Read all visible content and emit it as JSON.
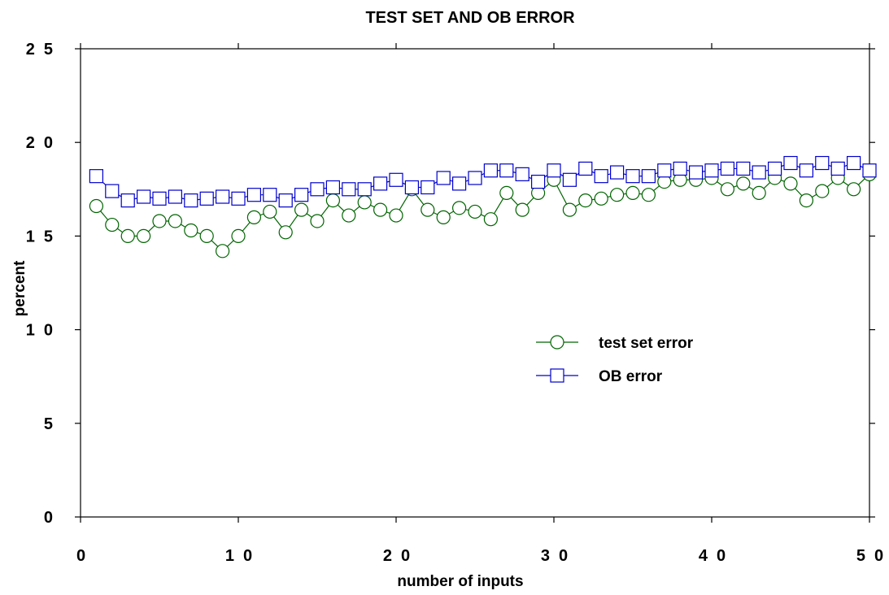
{
  "chart_data": {
    "type": "line",
    "title": "TEST SET AND OB ERROR",
    "xlabel": "number of inputs",
    "ylabel": "percent",
    "xlim": [
      0,
      50
    ],
    "ylim": [
      0,
      25
    ],
    "xticks": [
      0,
      10,
      20,
      30,
      40,
      50
    ],
    "xtick_labels": [
      "0",
      "10",
      "20",
      "30",
      "40",
      "50"
    ],
    "yticks": [
      0,
      5,
      10,
      15,
      20,
      25
    ],
    "ytick_labels": [
      "0",
      "5",
      "10",
      "15",
      "20",
      "25"
    ],
    "grid": false,
    "legend_position": "center-right",
    "x": [
      1,
      2,
      3,
      4,
      5,
      6,
      7,
      8,
      9,
      10,
      11,
      12,
      13,
      14,
      15,
      16,
      17,
      18,
      19,
      20,
      21,
      22,
      23,
      24,
      25,
      26,
      27,
      28,
      29,
      30,
      31,
      32,
      33,
      34,
      35,
      36,
      37,
      38,
      39,
      40,
      41,
      42,
      43,
      44,
      45,
      46,
      47,
      48,
      49,
      50
    ],
    "series": [
      {
        "name": "test set error",
        "color": "#006400",
        "marker": "circle",
        "values": [
          16.6,
          15.6,
          15.0,
          15.0,
          15.8,
          15.8,
          15.3,
          15.0,
          14.2,
          15.0,
          16.0,
          16.3,
          15.2,
          16.4,
          15.8,
          16.9,
          16.1,
          16.8,
          16.4,
          16.1,
          17.5,
          16.4,
          16.0,
          16.5,
          16.3,
          15.9,
          17.3,
          16.4,
          17.3,
          18.0,
          16.4,
          16.9,
          17.0,
          17.2,
          17.3,
          17.2,
          17.9,
          18.0,
          18.0,
          18.1,
          17.5,
          17.8,
          17.3,
          18.1,
          17.8,
          16.9,
          17.4,
          18.1,
          17.5,
          18.3
        ]
      },
      {
        "name": "OB error",
        "color": "#0000cc",
        "marker": "square",
        "values": [
          18.2,
          17.4,
          16.9,
          17.1,
          17.0,
          17.1,
          16.9,
          17.0,
          17.1,
          17.0,
          17.2,
          17.2,
          16.9,
          17.2,
          17.5,
          17.6,
          17.5,
          17.5,
          17.8,
          18.0,
          17.6,
          17.6,
          18.1,
          17.8,
          18.1,
          18.5,
          18.5,
          18.3,
          17.9,
          18.5,
          18.0,
          18.6,
          18.2,
          18.4,
          18.2,
          18.2,
          18.5,
          18.6,
          18.4,
          18.5,
          18.6,
          18.6,
          18.4,
          18.6,
          18.9,
          18.5,
          18.9,
          18.6,
          18.9,
          18.5
        ]
      }
    ]
  }
}
